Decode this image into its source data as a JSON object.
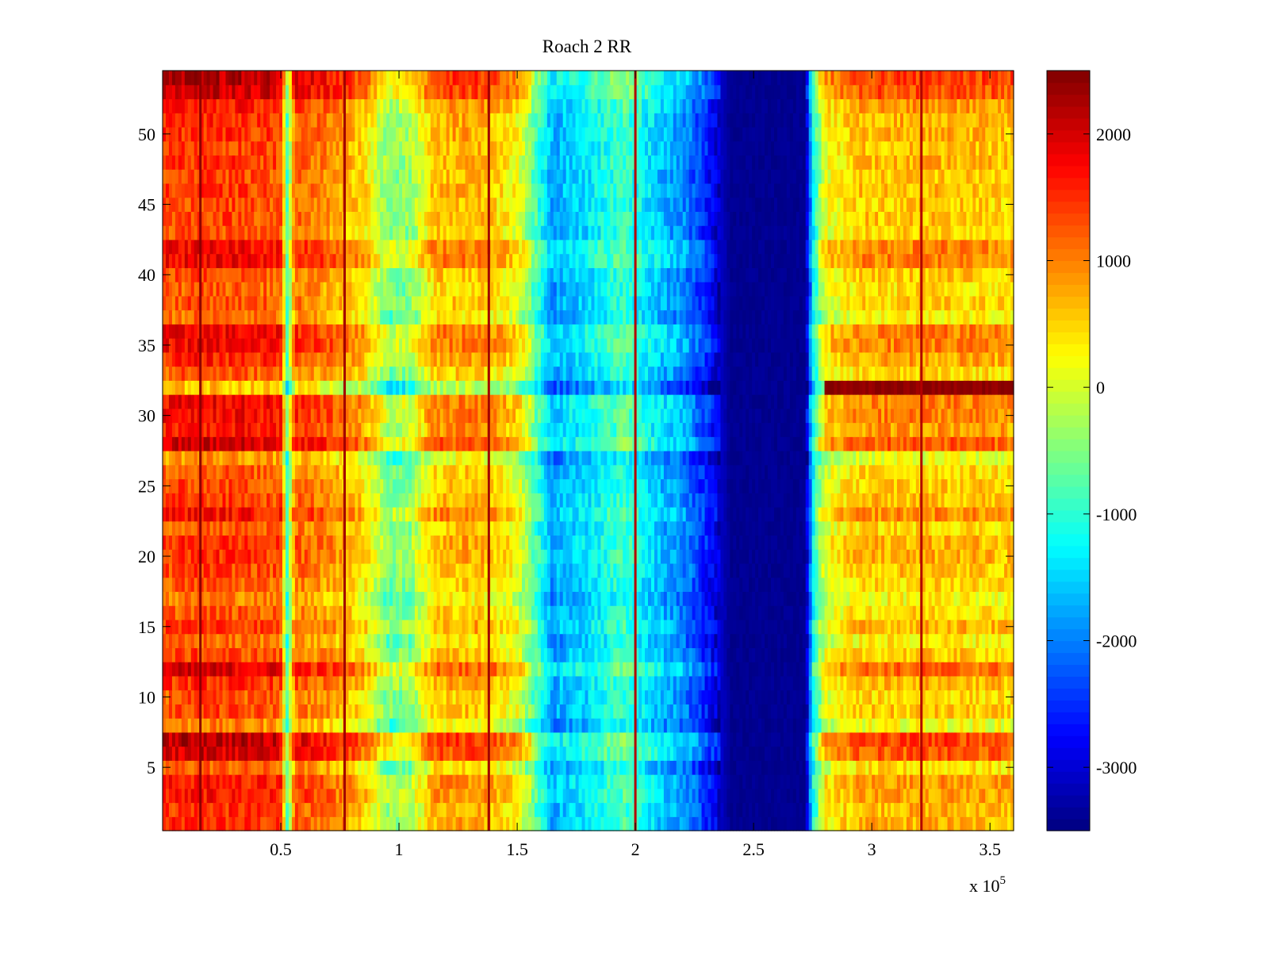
{
  "chart_data": {
    "type": "heatmap",
    "title": "Roach 2 RR",
    "xlabel": "",
    "ylabel": "",
    "x_exponent_label": "x 10",
    "x_exponent_power": "5",
    "xlim": [
      0,
      360000
    ],
    "ylim": [
      0.5,
      54.5
    ],
    "x_ticks": [
      50000,
      100000,
      150000,
      200000,
      250000,
      300000,
      350000
    ],
    "x_tick_labels": [
      "0.5",
      "1",
      "1.5",
      "2",
      "2.5",
      "3",
      "3.5"
    ],
    "y_ticks": [
      5,
      10,
      15,
      20,
      25,
      30,
      35,
      40,
      45,
      50
    ],
    "y_tick_labels": [
      "5",
      "10",
      "15",
      "20",
      "25",
      "30",
      "35",
      "40",
      "45",
      "50"
    ],
    "colormap": "jet",
    "clim": [
      -3500,
      2500
    ],
    "colorbar_ticks": [
      2000,
      1000,
      0,
      -1000,
      -2000,
      -3000
    ],
    "colorbar_tick_labels": [
      "2000",
      "1000",
      "0",
      "-1000",
      "-2000",
      "-3000"
    ],
    "grid": false,
    "rows": 54,
    "x_profile": [
      {
        "x": 0,
        "v": 1300
      },
      {
        "x": 15000,
        "v": 1400
      },
      {
        "x": 30000,
        "v": 1350
      },
      {
        "x": 50000,
        "v": 1250
      },
      {
        "x": 53000,
        "v": -900
      },
      {
        "x": 56000,
        "v": 1150
      },
      {
        "x": 70000,
        "v": 900
      },
      {
        "x": 85000,
        "v": 450
      },
      {
        "x": 95000,
        "v": -500
      },
      {
        "x": 105000,
        "v": -400
      },
      {
        "x": 115000,
        "v": 600
      },
      {
        "x": 135000,
        "v": 650
      },
      {
        "x": 150000,
        "v": 150
      },
      {
        "x": 160000,
        "v": -1000
      },
      {
        "x": 165000,
        "v": -1700
      },
      {
        "x": 180000,
        "v": -1300
      },
      {
        "x": 195000,
        "v": -800
      },
      {
        "x": 210000,
        "v": -1500
      },
      {
        "x": 220000,
        "v": -1800
      },
      {
        "x": 230000,
        "v": -2500
      },
      {
        "x": 240000,
        "v": -3400
      },
      {
        "x": 272000,
        "v": -3400
      },
      {
        "x": 275000,
        "v": -1200
      },
      {
        "x": 280000,
        "v": 100
      },
      {
        "x": 295000,
        "v": 550
      },
      {
        "x": 330000,
        "v": 600
      },
      {
        "x": 360000,
        "v": 500
      }
    ],
    "row_offsets": [
      {
        "y": 1,
        "v": 500
      },
      {
        "y": 2,
        "v": 500
      },
      {
        "y": 3,
        "v": 700
      },
      {
        "y": 4,
        "v": 700
      },
      {
        "y": 5,
        "v": 100
      },
      {
        "y": 6,
        "v": 1200
      },
      {
        "y": 7,
        "v": 1400
      },
      {
        "y": 8,
        "v": -200
      },
      {
        "y": 9,
        "v": 300
      },
      {
        "y": 10,
        "v": 200
      },
      {
        "y": 11,
        "v": 500
      },
      {
        "y": 12,
        "v": 1100
      },
      {
        "y": 13,
        "v": 300
      },
      {
        "y": 14,
        "v": 0
      },
      {
        "y": 15,
        "v": 500
      },
      {
        "y": 16,
        "v": 200
      },
      {
        "y": 17,
        "v": -100
      },
      {
        "y": 18,
        "v": 200
      },
      {
        "y": 19,
        "v": 350
      },
      {
        "y": 20,
        "v": 500
      },
      {
        "y": 21,
        "v": 500
      },
      {
        "y": 22,
        "v": 200
      },
      {
        "y": 23,
        "v": 800
      },
      {
        "y": 24,
        "v": 400
      },
      {
        "y": 25,
        "v": 300
      },
      {
        "y": 26,
        "v": 200
      },
      {
        "y": 27,
        "v": -300
      },
      {
        "y": 28,
        "v": 1200
      },
      {
        "y": 29,
        "v": 700
      },
      {
        "y": 30,
        "v": 900
      },
      {
        "y": 31,
        "v": 900
      },
      {
        "y": 32,
        "v": -700
      },
      {
        "y": 33,
        "v": 200
      },
      {
        "y": 34,
        "v": 600
      },
      {
        "y": 35,
        "v": 900
      },
      {
        "y": 36,
        "v": 900
      },
      {
        "y": 37,
        "v": 0
      },
      {
        "y": 38,
        "v": 250
      },
      {
        "y": 39,
        "v": 150
      },
      {
        "y": 40,
        "v": 300
      },
      {
        "y": 41,
        "v": 900
      },
      {
        "y": 42,
        "v": 900
      },
      {
        "y": 43,
        "v": 250
      },
      {
        "y": 44,
        "v": 350
      },
      {
        "y": 45,
        "v": 300
      },
      {
        "y": 46,
        "v": 400
      },
      {
        "y": 47,
        "v": 300
      },
      {
        "y": 48,
        "v": 450
      },
      {
        "y": 49,
        "v": 400
      },
      {
        "y": 50,
        "v": 500
      },
      {
        "y": 51,
        "v": 500
      },
      {
        "y": 52,
        "v": 700
      },
      {
        "y": 53,
        "v": 1300
      },
      {
        "y": 54,
        "v": 1400
      }
    ],
    "special_row": {
      "y": 32,
      "x_start": 280000,
      "x_end": 360000,
      "v": 2500
    },
    "vertical_lines": [
      {
        "x": 16000,
        "v": 2400
      },
      {
        "x": 77000,
        "v": 2300
      },
      {
        "x": 138000,
        "v": 2300
      },
      {
        "x": 200000,
        "v": 2200
      },
      {
        "x": 321000,
        "v": 2200
      }
    ]
  }
}
